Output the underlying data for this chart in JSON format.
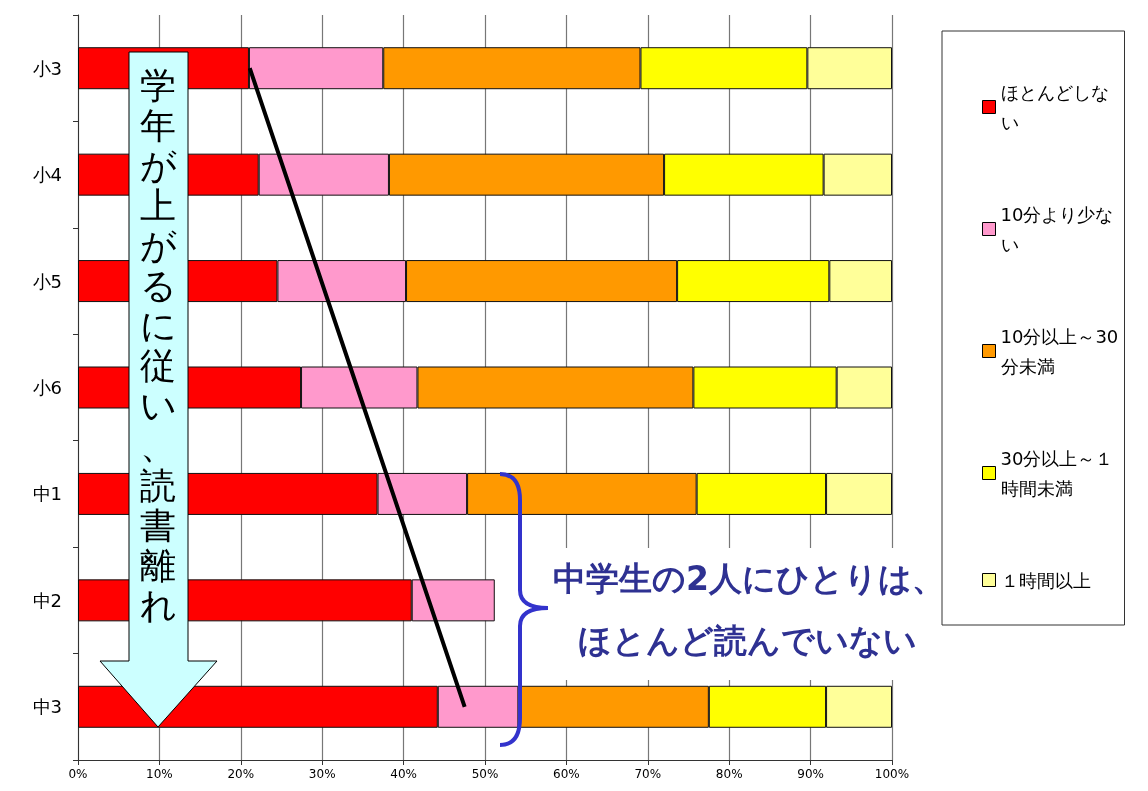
{
  "chart_data": {
    "type": "bar",
    "orientation": "horizontal",
    "stacked": true,
    "categories": [
      "小3",
      "小4",
      "小5",
      "小6",
      "中1",
      "中2",
      "中3"
    ],
    "series": [
      {
        "name": "ほとんどしない",
        "color": "#ff0000",
        "values": [
          21.0,
          22.2,
          24.5,
          27.4,
          36.8,
          41.0,
          44.2
        ]
      },
      {
        "name": "10分より少ない",
        "color": "#ff99cc",
        "values": [
          16.5,
          16.0,
          15.8,
          14.3,
          11.0,
          10.2,
          9.9
        ]
      },
      {
        "name": "10分以上～30分未満",
        "color": "#ff9900",
        "values": [
          31.6,
          33.8,
          33.3,
          33.9,
          28.2,
          null,
          23.4
        ]
      },
      {
        "name": "30分以上～１時間未満",
        "color": "#ffff00",
        "values": [
          20.5,
          19.6,
          18.7,
          17.6,
          15.9,
          null,
          14.4
        ]
      },
      {
        "name": "１時間以上",
        "color": "#ffff99",
        "values": [
          10.4,
          8.4,
          7.7,
          6.8,
          8.1,
          null,
          8.1
        ]
      },
      {
        "type": "line",
        "color": "#000000",
        "marker": "none",
        "values": [
          21.1,
          25.5,
          29.9,
          34.3,
          38.7,
          43.1,
          47.5
        ]
      }
    ],
    "xlim": [
      0,
      100
    ],
    "xticks": [
      {
        "value": 0,
        "label": "0%"
      },
      {
        "value": 10,
        "label": "10%"
      },
      {
        "value": 20,
        "label": "20%"
      },
      {
        "value": 30,
        "label": "30%"
      },
      {
        "value": 40,
        "label": "40%"
      },
      {
        "value": 50,
        "label": "50%"
      },
      {
        "value": 60,
        "label": "60%"
      },
      {
        "value": 70,
        "label": "70%"
      },
      {
        "value": 80,
        "label": "80%"
      },
      {
        "value": 90,
        "label": "90%"
      },
      {
        "value": 100,
        "label": "100%"
      }
    ],
    "grid": "x",
    "legend": "right",
    "annotations": [
      "学年が上がるに従い、読書離れ",
      "中学生の2人にひとりは、",
      "ほとんど読んでいない"
    ]
  }
}
